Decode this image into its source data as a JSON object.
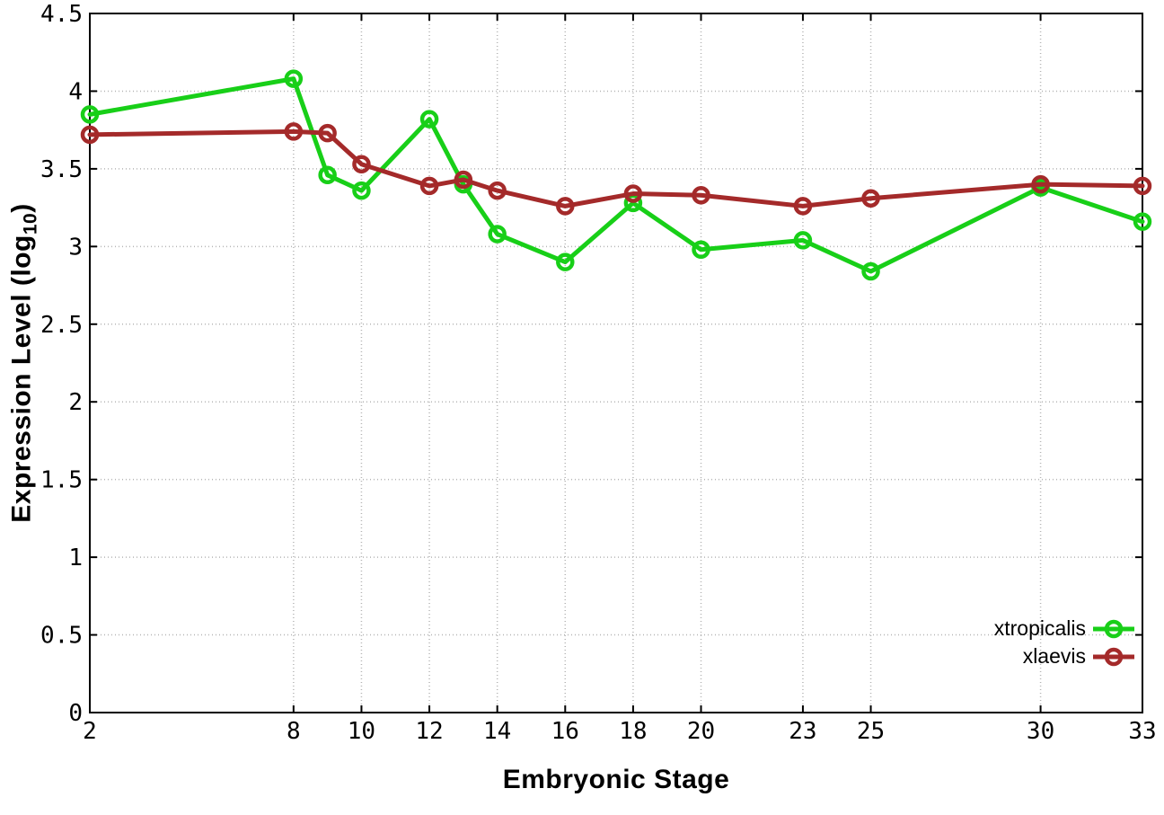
{
  "figure": {
    "background": "#ffffff",
    "axis_color": "#000000",
    "grid_color": "#b5b5b5"
  },
  "chart_data": {
    "type": "line",
    "title": "",
    "xlabel": "Embryonic Stage",
    "ylabel": "Expression Level (log10)",
    "ylabel_parts": {
      "prefix": "Expression Level (log",
      "subscript": "10",
      "suffix": ")"
    },
    "x": [
      2,
      8,
      9,
      10,
      12,
      13,
      14,
      16,
      18,
      20,
      23,
      25,
      30,
      33
    ],
    "series": [
      {
        "name": "xtropicalis",
        "color": "#18cf18",
        "values": [
          3.85,
          4.08,
          3.46,
          3.36,
          3.82,
          3.4,
          3.08,
          2.9,
          3.28,
          2.98,
          3.04,
          2.84,
          3.38,
          3.16
        ]
      },
      {
        "name": "xlaevis",
        "color": "#a42a2a",
        "values": [
          3.72,
          3.74,
          3.73,
          3.53,
          3.39,
          3.43,
          3.36,
          3.26,
          3.34,
          3.33,
          3.26,
          3.31,
          3.4,
          3.39
        ]
      }
    ],
    "xlim": [
      2,
      33
    ],
    "ylim": [
      0,
      4.5
    ],
    "xticks": [
      2,
      8,
      10,
      12,
      14,
      16,
      18,
      20,
      23,
      25,
      30,
      33
    ],
    "xtick_labels": [
      "2",
      "8",
      "10",
      "12",
      "14",
      "16",
      "18",
      "20",
      "23",
      "25",
      "30",
      "33"
    ],
    "yticks": [
      0,
      0.5,
      1,
      1.5,
      2,
      2.5,
      3,
      3.5,
      4,
      4.5
    ],
    "ytick_labels": [
      "0",
      "0.5",
      "1",
      "1.5",
      "2",
      "2.5",
      "3",
      "3.5",
      "4",
      "4.5"
    ],
    "grid": true,
    "legend_position": "bottom-right"
  }
}
